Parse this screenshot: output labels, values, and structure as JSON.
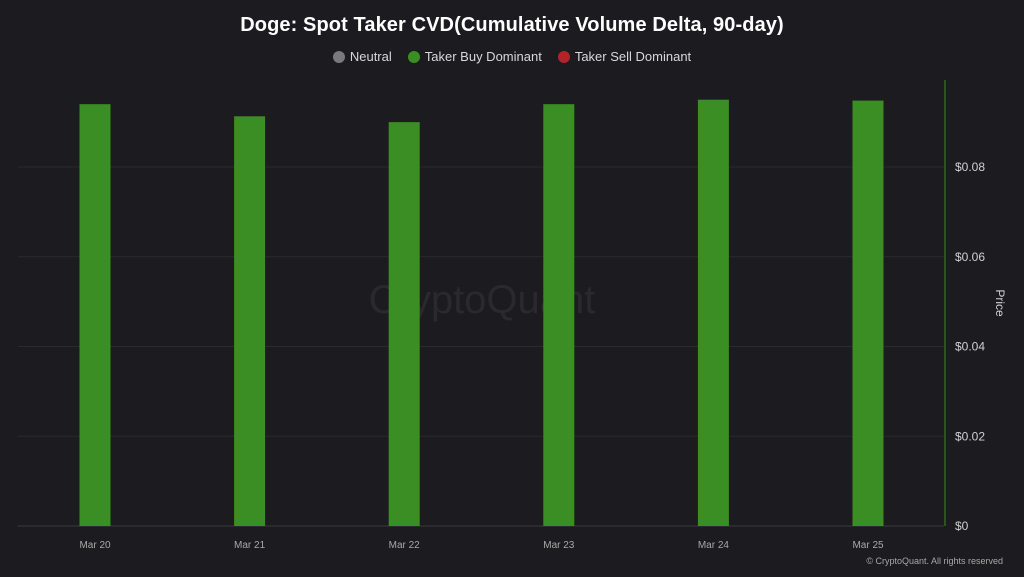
{
  "chart_data": {
    "type": "bar",
    "title": "Doge: Spot Taker CVD(Cumulative Volume Delta, 90-day)",
    "legend": {
      "placement": "top-center",
      "items": [
        {
          "label": "Neutral",
          "color": "#7a797d"
        },
        {
          "label": "Taker Buy Dominant",
          "color": "#3b8e23"
        },
        {
          "label": "Taker Sell Dominant",
          "color": "#b0242a"
        }
      ]
    },
    "categories": [
      "Mar 20",
      "Mar 21",
      "Mar 22",
      "Mar 23",
      "Mar 24",
      "Mar 25"
    ],
    "series": [
      {
        "name": "Taker Buy Dominant",
        "color": "#3b8e23",
        "values": [
          0.094,
          0.0913,
          0.09,
          0.094,
          0.095,
          0.0948
        ]
      }
    ],
    "y_axis": {
      "label": "Price",
      "position": "right",
      "ylim": [
        0,
        0.1
      ],
      "ticks": [
        {
          "value": 0,
          "label": "$0"
        },
        {
          "value": 0.02,
          "label": "$0.02"
        },
        {
          "value": 0.04,
          "label": "$0.04"
        },
        {
          "value": 0.06,
          "label": "$0.06"
        },
        {
          "value": 0.08,
          "label": "$0.08"
        }
      ],
      "axis_color": "#3b8e23"
    },
    "grid": true,
    "watermark": "CryptoQuant",
    "copyright": "© CryptoQuant. All rights reserved"
  }
}
